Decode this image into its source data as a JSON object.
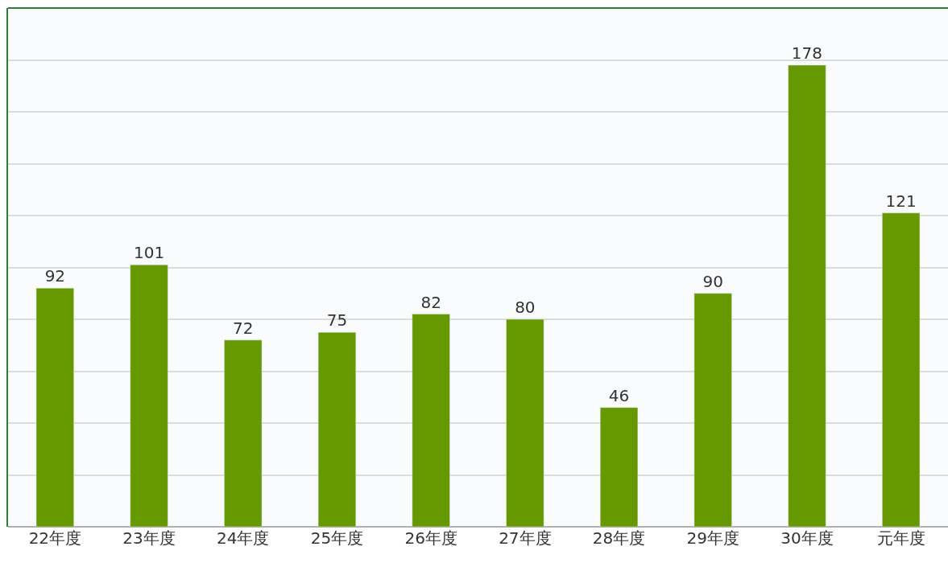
{
  "chart_data": {
    "type": "bar",
    "categories": [
      "22年度",
      "23年度",
      "24年度",
      "25年度",
      "26年度",
      "27年度",
      "28年度",
      "29年度",
      "30年度",
      "元年度"
    ],
    "values": [
      92,
      101,
      72,
      75,
      82,
      80,
      46,
      90,
      178,
      121
    ],
    "color": "#669900",
    "ylim": [
      0,
      200
    ],
    "yticks": [
      {
        "value": 0,
        "label": null
      },
      {
        "value": 20,
        "label": null
      },
      {
        "value": 40,
        "label": null
      },
      {
        "value": 60,
        "label": null
      },
      {
        "value": 80,
        "label": null
      },
      {
        "value": 100,
        "label": null
      },
      {
        "value": 120,
        "label": null
      },
      {
        "value": 140,
        "label": null
      },
      {
        "value": 160,
        "label": null
      },
      {
        "value": 180,
        "label": null
      },
      {
        "value": 200,
        "label": null
      }
    ],
    "grid": "y",
    "tick_labels": "x",
    "data_labels": true
  }
}
